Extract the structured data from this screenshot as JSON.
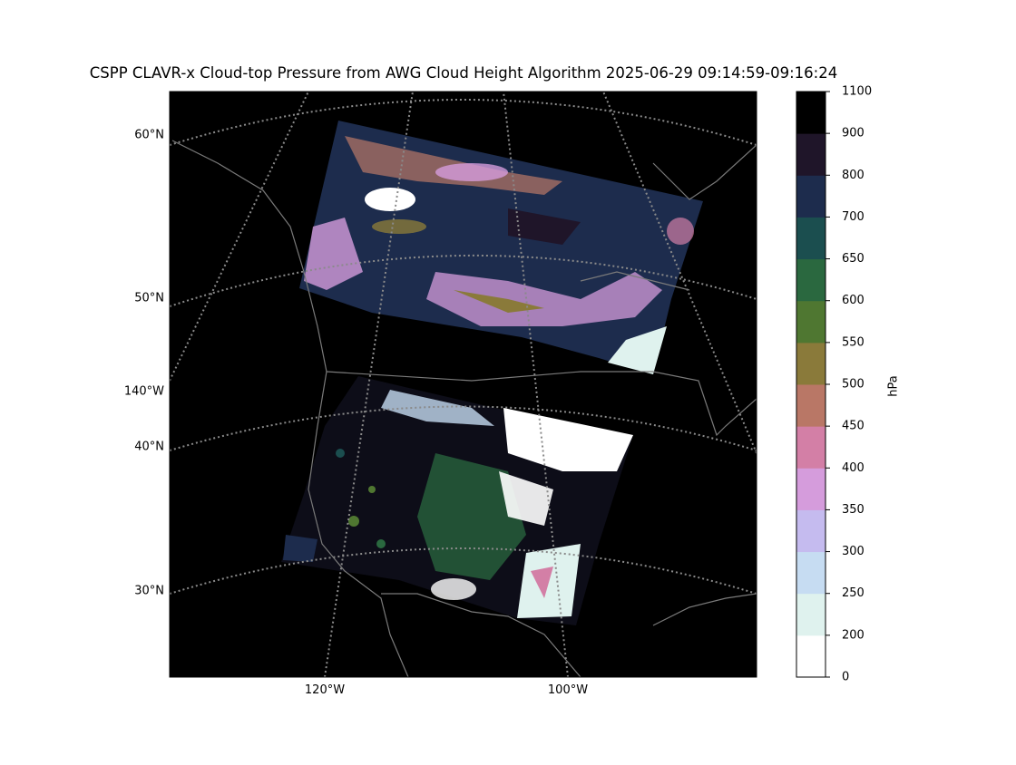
{
  "title": "CSPP CLAVR-x Cloud-top Pressure from AWG Cloud Height Algorithm 2025-06-29 09:14:59-09:16:24",
  "map": {
    "lat_labels": [
      "60°N",
      "50°N",
      "40°N",
      "30°N"
    ],
    "lon_labels": [
      "140°W",
      "120°W",
      "100°W"
    ]
  },
  "colorbar": {
    "label": "hPa",
    "ticks": [
      0,
      200,
      250,
      300,
      350,
      400,
      450,
      500,
      550,
      600,
      650,
      700,
      800,
      900,
      1100
    ],
    "colors": [
      "#ffffff",
      "#dff2ee",
      "#c6dcf2",
      "#c5bbef",
      "#d59cdc",
      "#d37fa6",
      "#b97766",
      "#8a7a3a",
      "#4f7731",
      "#2a683f",
      "#1b4e4f",
      "#1d2c4d",
      "#1f1529",
      "#000000"
    ]
  }
}
